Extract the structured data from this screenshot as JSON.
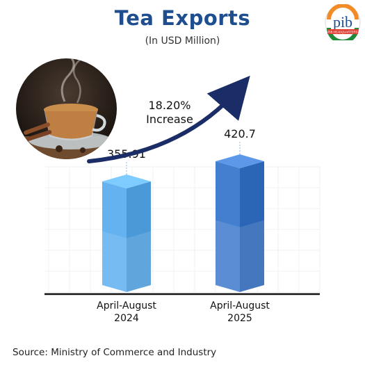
{
  "header": {
    "title": "Tea Exports",
    "subtitle": "(In USD Million)"
  },
  "logo": {
    "text": "pib",
    "banner": "PIB HEADQUARTERS"
  },
  "annotation": {
    "percent": "18.20%",
    "label": "Increase"
  },
  "footer": {
    "source": "Source: Ministry of Commerce and Industry"
  },
  "colors": {
    "title": "#1f4e8f",
    "bar_2024": "#5aa8e6",
    "bar_2025": "#3a74c4",
    "arrow": "#1b2d66"
  },
  "chart_data": {
    "type": "bar",
    "title": "Tea Exports",
    "subtitle": "(In USD Million)",
    "categories": [
      "April-August 2024",
      "April-August 2025"
    ],
    "category_lines": [
      [
        "April-August",
        "2024"
      ],
      [
        "April-August",
        "2025"
      ]
    ],
    "values": [
      355.91,
      420.7
    ],
    "value_labels": [
      "355.91",
      "420.7"
    ],
    "ylabel": "",
    "xlabel": "",
    "ylim": [
      0,
      450
    ],
    "grid": true,
    "change_annotation": "18.20% Increase"
  }
}
